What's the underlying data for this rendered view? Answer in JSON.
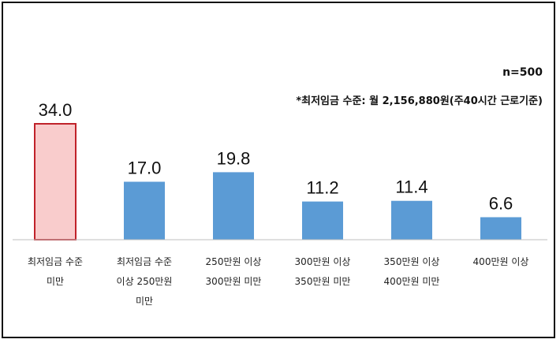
{
  "annotations": {
    "sample_size": "n=500",
    "footnote": "*최저임금 수준: 월 2,156,880원(주40시간 근로기준)"
  },
  "chart_data": {
    "type": "bar",
    "categories": [
      [
        "최저임금 수준",
        "미만"
      ],
      [
        "최저임금 수준",
        "이상 250만원",
        "미만"
      ],
      [
        "250만원 이상",
        "300만원 미만"
      ],
      [
        "300만원 이상",
        "350만원 미만"
      ],
      [
        "350만원 이상",
        "400만원 미만"
      ],
      [
        "400만원 이상"
      ]
    ],
    "values": [
      34.0,
      17.0,
      19.8,
      11.2,
      11.4,
      6.6
    ],
    "value_labels": [
      "34.0",
      "17.0",
      "19.8",
      "11.2",
      "11.4",
      "6.6"
    ],
    "ylim": [
      0,
      34.0
    ],
    "highlight_index": 0,
    "colors": {
      "bar": "#5b9bd5",
      "highlight_fill": "#f9cccc",
      "highlight_stroke": "#c0222a",
      "axis": "#bfbfbf",
      "value_text": "#111111"
    },
    "title": "",
    "xlabel": "",
    "ylabel": ""
  }
}
